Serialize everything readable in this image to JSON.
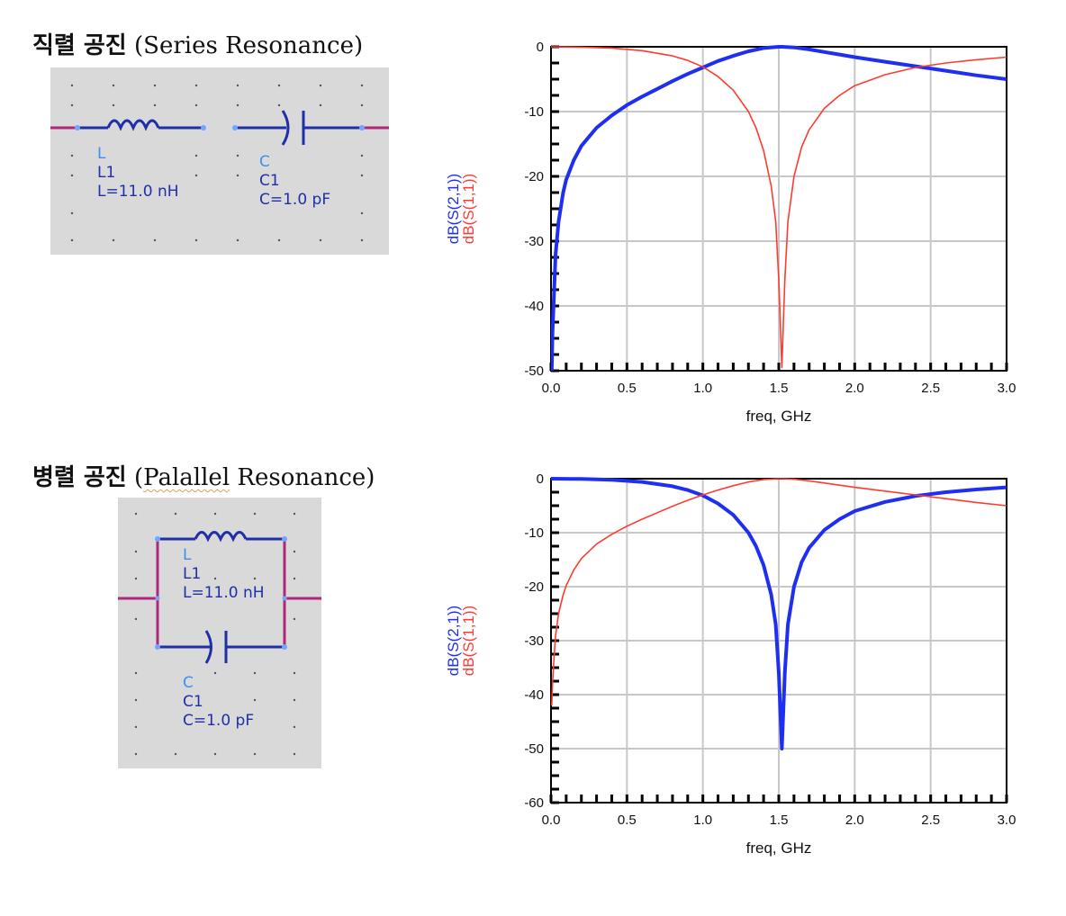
{
  "sections": [
    {
      "title_ko": "직렬 공진",
      "title_en_prefix": "(Series",
      "title_en_suffix": "Resonance)",
      "inductor": {
        "type": "L",
        "name": "L1",
        "value": "L=11.0 nH"
      },
      "capacitor": {
        "type": "C",
        "name": "C1",
        "value": "C=1.0 pF"
      }
    },
    {
      "title_ko": "병렬 공진",
      "title_en_prefix": "(",
      "title_en_squiggle": "Palallel",
      "title_en_suffix": "Resonance)",
      "inductor": {
        "type": "L",
        "name": "L1",
        "value": "L=11.0 nH"
      },
      "capacitor": {
        "type": "C",
        "name": "C1",
        "value": "C=1.0 pF"
      }
    }
  ],
  "colors": {
    "s21": "#1f2ff0",
    "s11": "#ff3b30",
    "wire": "#1f2fa8",
    "port": "#b0267a",
    "grid": "#c8c8c8",
    "panel": "#d9d9d9"
  },
  "chart_data": [
    {
      "type": "line",
      "xlabel": "freq, GHz",
      "ylabels": [
        "dB(S(2,1))",
        "dB(S(1,1))"
      ],
      "xlim": [
        0,
        3.0
      ],
      "ylim": [
        -50,
        0
      ],
      "xticks": [
        0.0,
        0.5,
        1.0,
        1.5,
        2.0,
        2.5,
        3.0
      ],
      "yticks": [
        0,
        -10,
        -20,
        -30,
        -40,
        -50
      ],
      "grid": true,
      "series": [
        {
          "name": "dB(S(2,1))",
          "x": [
            0.005,
            0.01,
            0.02,
            0.03,
            0.05,
            0.08,
            0.1,
            0.15,
            0.2,
            0.3,
            0.4,
            0.5,
            0.6,
            0.7,
            0.8,
            0.9,
            1.0,
            1.1,
            1.2,
            1.3,
            1.4,
            1.5,
            1.52,
            1.6,
            1.7,
            1.8,
            1.9,
            2.0,
            2.2,
            2.4,
            2.6,
            2.8,
            3.0
          ],
          "y": [
            -50,
            -44,
            -38,
            -32,
            -27,
            -22.5,
            -20.5,
            -17.5,
            -15.3,
            -12.5,
            -10.6,
            -9.0,
            -7.7,
            -6.5,
            -5.3,
            -4.2,
            -3.2,
            -2.2,
            -1.4,
            -0.7,
            -0.2,
            0,
            0,
            -0.1,
            -0.4,
            -0.8,
            -1.2,
            -1.6,
            -2.3,
            -3.0,
            -3.7,
            -4.4,
            -5.0
          ]
        },
        {
          "name": "dB(S(1,1))",
          "x": [
            0.0,
            0.2,
            0.4,
            0.6,
            0.8,
            0.9,
            1.0,
            1.1,
            1.2,
            1.3,
            1.35,
            1.4,
            1.45,
            1.48,
            1.5,
            1.52,
            1.54,
            1.56,
            1.6,
            1.65,
            1.7,
            1.8,
            1.9,
            2.0,
            2.2,
            2.4,
            2.6,
            2.8,
            3.0
          ],
          "y": [
            0,
            -0.05,
            -0.2,
            -0.6,
            -1.4,
            -2.1,
            -3.1,
            -4.6,
            -6.7,
            -10.0,
            -12.5,
            -16.0,
            -21.5,
            -27.0,
            -36.0,
            -49.5,
            -36.0,
            -27.0,
            -20.0,
            -15.5,
            -12.8,
            -9.5,
            -7.5,
            -6.0,
            -4.3,
            -3.2,
            -2.5,
            -2.0,
            -1.6
          ]
        }
      ]
    },
    {
      "type": "line",
      "xlabel": "freq, GHz",
      "ylabels": [
        "dB(S(2,1))",
        "dB(S(1,1))"
      ],
      "xlim": [
        0,
        3.0
      ],
      "ylim": [
        -60,
        0
      ],
      "xticks": [
        0.0,
        0.5,
        1.0,
        1.5,
        2.0,
        2.5,
        3.0
      ],
      "yticks": [
        0,
        -10,
        -20,
        -30,
        -40,
        -50,
        -60
      ],
      "grid": true,
      "series": [
        {
          "name": "dB(S(2,1))",
          "x": [
            0.0,
            0.2,
            0.4,
            0.6,
            0.8,
            0.9,
            1.0,
            1.1,
            1.2,
            1.3,
            1.35,
            1.4,
            1.45,
            1.48,
            1.5,
            1.52,
            1.54,
            1.56,
            1.6,
            1.65,
            1.7,
            1.8,
            1.9,
            2.0,
            2.2,
            2.4,
            2.6,
            2.8,
            3.0
          ],
          "y": [
            0,
            -0.05,
            -0.2,
            -0.6,
            -1.4,
            -2.1,
            -3.1,
            -4.6,
            -6.7,
            -10.0,
            -12.5,
            -16.0,
            -21.5,
            -27.0,
            -36.0,
            -50.0,
            -36.0,
            -27.0,
            -20.0,
            -15.5,
            -12.8,
            -9.5,
            -7.5,
            -6.0,
            -4.3,
            -3.2,
            -2.5,
            -2.0,
            -1.6
          ]
        },
        {
          "name": "dB(S(1,1))",
          "x": [
            0.005,
            0.01,
            0.02,
            0.03,
            0.05,
            0.08,
            0.1,
            0.15,
            0.2,
            0.3,
            0.4,
            0.5,
            0.6,
            0.7,
            0.8,
            0.9,
            1.0,
            1.1,
            1.2,
            1.3,
            1.4,
            1.5,
            1.52,
            1.6,
            1.7,
            1.8,
            1.9,
            2.0,
            2.2,
            2.4,
            2.6,
            2.8,
            3.0
          ],
          "y": [
            -42,
            -38,
            -33,
            -29,
            -25,
            -21.5,
            -19.8,
            -16.9,
            -14.8,
            -12.1,
            -10.3,
            -8.8,
            -7.5,
            -6.3,
            -5.1,
            -4.0,
            -3.0,
            -2.1,
            -1.3,
            -0.6,
            -0.15,
            0,
            0,
            -0.1,
            -0.4,
            -0.8,
            -1.2,
            -1.6,
            -2.3,
            -3.0,
            -3.7,
            -4.4,
            -5.0
          ]
        }
      ]
    }
  ]
}
